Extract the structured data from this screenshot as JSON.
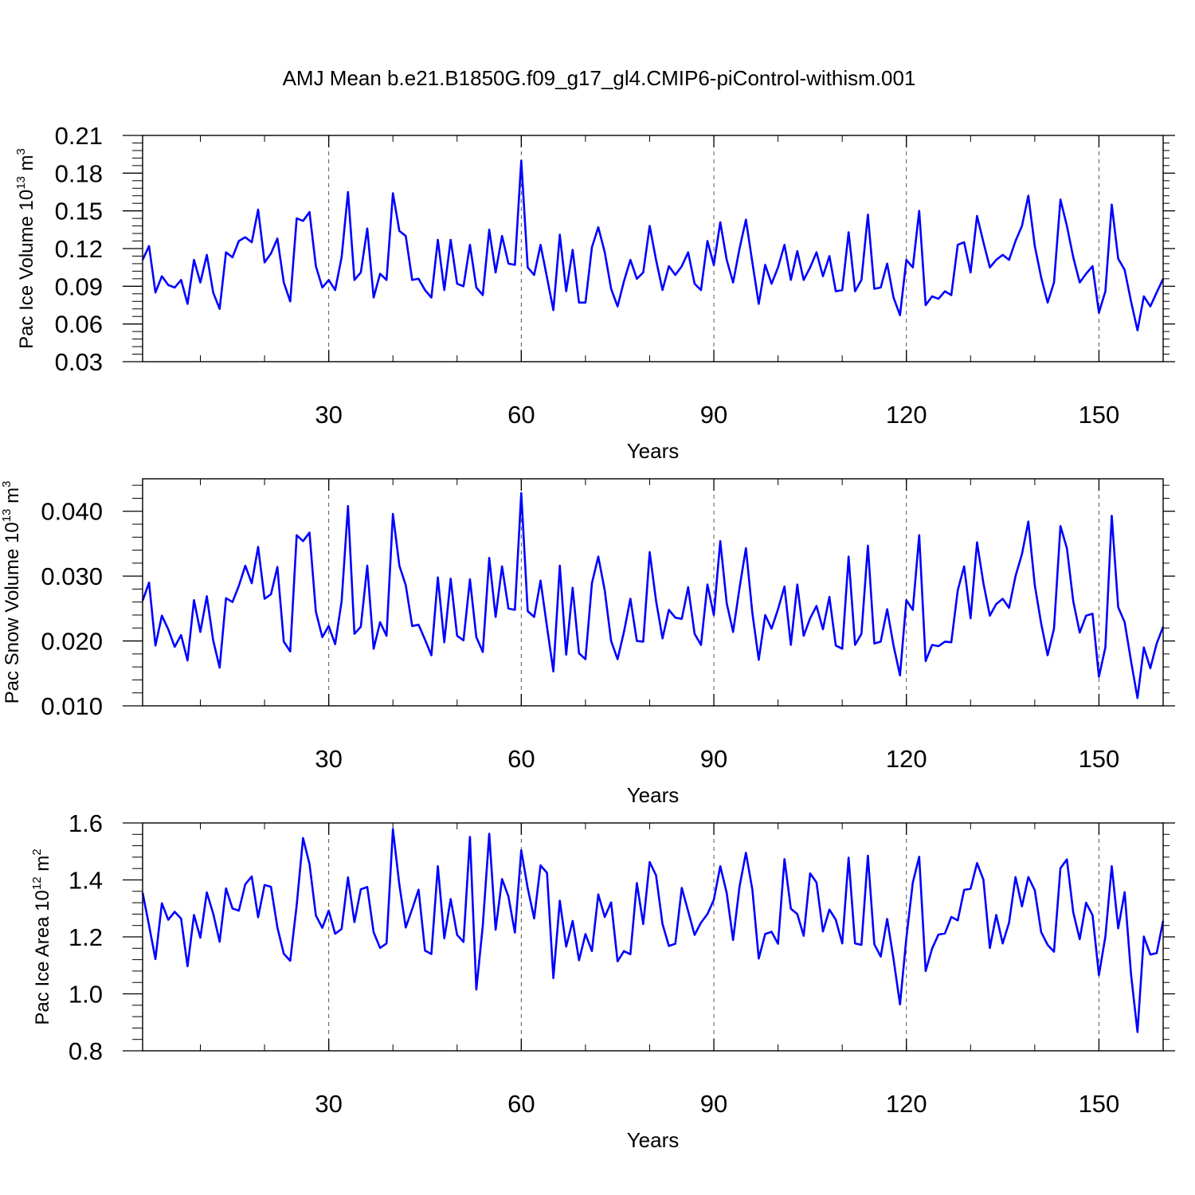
{
  "title": "AMJ Mean b.e21.B1850G.f09_g17_gl4.CMIP6-piControl-withism.001",
  "chart_data": [
    {
      "type": "line",
      "xlabel": "Years",
      "ylabel": {
        "main": "Pac Ice Volume 10",
        "exp": "13",
        "unit": " m",
        "unit_exp": "3"
      },
      "xlim": [
        1,
        160
      ],
      "xticks": [
        30,
        60,
        90,
        120,
        150
      ],
      "xtick_labels": [
        "30",
        "60",
        "90",
        "120",
        "150"
      ],
      "ylim": [
        0.03,
        0.21
      ],
      "yticks": [
        0.03,
        0.06,
        0.09,
        0.12,
        0.15,
        0.18,
        0.21
      ],
      "ytick_labels": [
        "0.03",
        "0.06",
        "0.09",
        "0.12",
        "0.15",
        "0.18",
        "0.21"
      ],
      "grid": "dashed vertical lines at major x ticks",
      "color": "#0000ff",
      "x_start": 1,
      "values": [
        0.111,
        0.122,
        0.085,
        0.098,
        0.091,
        0.089,
        0.095,
        0.076,
        0.111,
        0.093,
        0.115,
        0.085,
        0.072,
        0.117,
        0.113,
        0.126,
        0.129,
        0.125,
        0.151,
        0.109,
        0.116,
        0.128,
        0.093,
        0.078,
        0.144,
        0.142,
        0.149,
        0.106,
        0.089,
        0.095,
        0.087,
        0.113,
        0.165,
        0.095,
        0.101,
        0.136,
        0.081,
        0.1,
        0.095,
        0.164,
        0.134,
        0.13,
        0.095,
        0.096,
        0.087,
        0.081,
        0.127,
        0.087,
        0.127,
        0.092,
        0.09,
        0.123,
        0.089,
        0.083,
        0.135,
        0.101,
        0.13,
        0.108,
        0.107,
        0.19,
        0.105,
        0.099,
        0.123,
        0.097,
        0.071,
        0.131,
        0.086,
        0.119,
        0.077,
        0.077,
        0.121,
        0.137,
        0.117,
        0.088,
        0.074,
        0.094,
        0.111,
        0.096,
        0.101,
        0.138,
        0.111,
        0.087,
        0.106,
        0.099,
        0.106,
        0.117,
        0.092,
        0.087,
        0.126,
        0.107,
        0.141,
        0.111,
        0.093,
        0.12,
        0.143,
        0.109,
        0.076,
        0.107,
        0.092,
        0.105,
        0.123,
        0.095,
        0.118,
        0.095,
        0.105,
        0.117,
        0.098,
        0.114,
        0.086,
        0.087,
        0.133,
        0.086,
        0.095,
        0.147,
        0.088,
        0.089,
        0.108,
        0.081,
        0.067,
        0.111,
        0.105,
        0.15,
        0.075,
        0.082,
        0.08,
        0.086,
        0.083,
        0.123,
        0.125,
        0.101,
        0.146,
        0.125,
        0.105,
        0.111,
        0.115,
        0.111,
        0.126,
        0.138,
        0.162,
        0.122,
        0.097,
        0.077,
        0.093,
        0.159,
        0.138,
        0.113,
        0.093,
        0.1,
        0.106,
        0.069,
        0.086,
        0.155,
        0.112,
        0.103,
        0.078,
        0.055,
        0.082,
        0.074,
        0.085,
        0.096
      ]
    },
    {
      "type": "line",
      "xlabel": "Years",
      "ylabel": {
        "main": "Pac Snow Volume 10",
        "exp": "13",
        "unit": " m",
        "unit_exp": "3"
      },
      "xlim": [
        1,
        160
      ],
      "xticks": [
        30,
        60,
        90,
        120,
        150
      ],
      "xtick_labels": [
        "30",
        "60",
        "90",
        "120",
        "150"
      ],
      "ylim": [
        0.01,
        0.045
      ],
      "yticks": [
        0.01,
        0.02,
        0.03,
        0.04
      ],
      "ytick_labels": [
        "0.010",
        "0.020",
        "0.030",
        "0.040"
      ],
      "grid": "dashed vertical lines at major x ticks",
      "color": "#0000ff",
      "x_start": 1,
      "values": [
        0.0262,
        0.029,
        0.0193,
        0.0239,
        0.0218,
        0.0191,
        0.0209,
        0.017,
        0.0263,
        0.0214,
        0.0269,
        0.0201,
        0.0159,
        0.0266,
        0.026,
        0.0285,
        0.0316,
        0.0289,
        0.0345,
        0.0265,
        0.0272,
        0.0314,
        0.0199,
        0.0184,
        0.0363,
        0.0354,
        0.0367,
        0.0245,
        0.0206,
        0.0223,
        0.0195,
        0.0261,
        0.0408,
        0.0211,
        0.0222,
        0.0316,
        0.0188,
        0.0229,
        0.0208,
        0.0396,
        0.0316,
        0.0286,
        0.0223,
        0.0225,
        0.0202,
        0.0178,
        0.0298,
        0.0198,
        0.0296,
        0.0208,
        0.0201,
        0.0295,
        0.0206,
        0.0183,
        0.0328,
        0.0237,
        0.0315,
        0.025,
        0.0248,
        0.0428,
        0.0246,
        0.0237,
        0.0293,
        0.0222,
        0.0153,
        0.0316,
        0.0179,
        0.0282,
        0.0181,
        0.0172,
        0.0289,
        0.033,
        0.0278,
        0.02,
        0.0172,
        0.0214,
        0.0265,
        0.02,
        0.0199,
        0.0337,
        0.0262,
        0.0204,
        0.0248,
        0.0236,
        0.0234,
        0.0283,
        0.0211,
        0.0194,
        0.0287,
        0.024,
        0.0354,
        0.0258,
        0.0214,
        0.0282,
        0.0343,
        0.0243,
        0.0171,
        0.024,
        0.0219,
        0.0249,
        0.0284,
        0.0194,
        0.0287,
        0.0208,
        0.0235,
        0.0254,
        0.0218,
        0.0268,
        0.0193,
        0.0188,
        0.033,
        0.0194,
        0.0211,
        0.0347,
        0.0196,
        0.0199,
        0.0249,
        0.0193,
        0.0147,
        0.0263,
        0.0248,
        0.0363,
        0.0169,
        0.0194,
        0.0192,
        0.0199,
        0.0198,
        0.0278,
        0.0315,
        0.0235,
        0.0352,
        0.0289,
        0.0239,
        0.0257,
        0.0265,
        0.0251,
        0.03,
        0.0334,
        0.0384,
        0.0286,
        0.0227,
        0.0178,
        0.0219,
        0.0377,
        0.0343,
        0.0261,
        0.0213,
        0.0239,
        0.0242,
        0.0145,
        0.019,
        0.0393,
        0.0252,
        0.0229,
        0.0169,
        0.0112,
        0.019,
        0.0158,
        0.0196,
        0.0222
      ]
    },
    {
      "type": "line",
      "xlabel": "Years",
      "ylabel": {
        "main": "Pac Ice Area 10",
        "exp": "12",
        "unit": " m",
        "unit_exp": "2"
      },
      "xlim": [
        1,
        160
      ],
      "xticks": [
        30,
        60,
        90,
        120,
        150
      ],
      "xtick_labels": [
        "30",
        "60",
        "90",
        "120",
        "150"
      ],
      "ylim": [
        0.8,
        1.6
      ],
      "yticks": [
        0.8,
        1.0,
        1.2,
        1.4,
        1.6
      ],
      "ytick_labels": [
        "0.8",
        "1.0",
        "1.2",
        "1.4",
        "1.6"
      ],
      "grid": "dashed vertical lines at major x ticks",
      "color": "#0000ff",
      "x_start": 1,
      "values": [
        1.355,
        1.24,
        1.122,
        1.318,
        1.26,
        1.288,
        1.264,
        1.097,
        1.277,
        1.197,
        1.356,
        1.282,
        1.183,
        1.37,
        1.3,
        1.292,
        1.385,
        1.412,
        1.269,
        1.382,
        1.376,
        1.233,
        1.141,
        1.116,
        1.311,
        1.547,
        1.456,
        1.275,
        1.232,
        1.292,
        1.211,
        1.228,
        1.409,
        1.252,
        1.367,
        1.375,
        1.216,
        1.161,
        1.177,
        1.578,
        1.383,
        1.233,
        1.298,
        1.366,
        1.152,
        1.14,
        1.448,
        1.195,
        1.333,
        1.207,
        1.182,
        1.551,
        1.015,
        1.239,
        1.562,
        1.225,
        1.403,
        1.342,
        1.215,
        1.504,
        1.371,
        1.265,
        1.451,
        1.425,
        1.055,
        1.327,
        1.166,
        1.256,
        1.118,
        1.21,
        1.15,
        1.349,
        1.27,
        1.321,
        1.114,
        1.15,
        1.139,
        1.389,
        1.245,
        1.463,
        1.416,
        1.245,
        1.168,
        1.176,
        1.372,
        1.29,
        1.207,
        1.25,
        1.28,
        1.33,
        1.448,
        1.354,
        1.189,
        1.377,
        1.495,
        1.366,
        1.124,
        1.21,
        1.218,
        1.176,
        1.473,
        1.299,
        1.28,
        1.204,
        1.423,
        1.391,
        1.219,
        1.296,
        1.26,
        1.177,
        1.478,
        1.177,
        1.172,
        1.485,
        1.174,
        1.131,
        1.263,
        1.122,
        0.963,
        1.196,
        1.391,
        1.481,
        1.08,
        1.159,
        1.208,
        1.212,
        1.27,
        1.258,
        1.365,
        1.369,
        1.459,
        1.401,
        1.161,
        1.277,
        1.177,
        1.25,
        1.41,
        1.307,
        1.41,
        1.364,
        1.217,
        1.172,
        1.148,
        1.441,
        1.472,
        1.286,
        1.192,
        1.32,
        1.276,
        1.066,
        1.201,
        1.448,
        1.23,
        1.357,
        1.069,
        0.866,
        1.201,
        1.138,
        1.143,
        1.256
      ]
    }
  ]
}
